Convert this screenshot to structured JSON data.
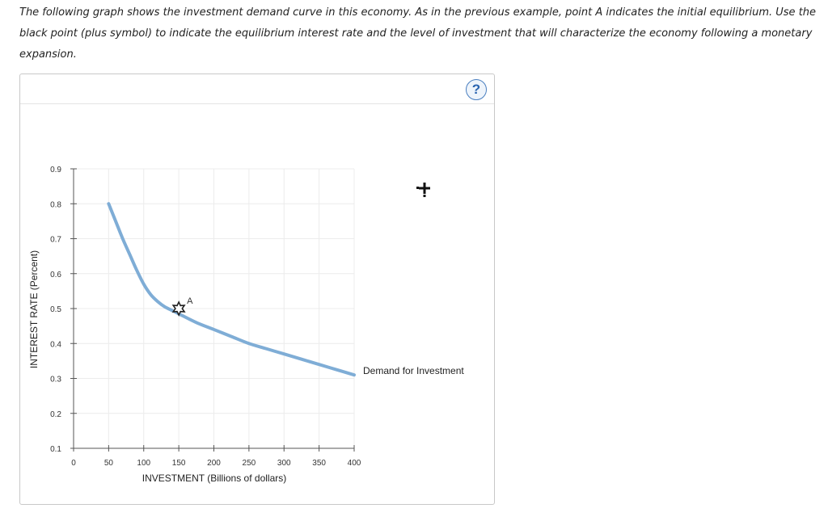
{
  "instructions": "The following graph shows the investment demand curve in this economy. As in the previous example, point A indicates the initial equilibrium. Use the black point (plus symbol) to indicate the equilibrium interest rate and the level of investment that will characterize the economy following a monetary expansion.",
  "help": {
    "label": "?",
    "icon": "question-circle-icon"
  },
  "colors": {
    "curve": "#7fadd6",
    "axis": "#555555",
    "grid": "#ececec"
  },
  "chart_data": {
    "type": "line",
    "xlabel": "INVESTMENT (Billions of dollars)",
    "ylabel": "INTEREST RATE (Percent)",
    "xlim": [
      0,
      400
    ],
    "ylim": [
      0.1,
      0.9
    ],
    "x_ticks": [
      0,
      50,
      100,
      150,
      200,
      250,
      300,
      350,
      400
    ],
    "y_ticks": [
      0.1,
      0.2,
      0.3,
      0.4,
      0.5,
      0.6,
      0.7,
      0.8,
      0.9
    ],
    "x_tick_labels": [
      "0",
      "50",
      "100",
      "150",
      "200",
      "250",
      "300",
      "350",
      "400"
    ],
    "y_tick_labels": [
      "0.1",
      "0.2",
      "0.3",
      "0.4",
      "0.5",
      "0.6",
      "0.7",
      "0.8",
      "0.9"
    ],
    "grid": true,
    "series": [
      {
        "name": "Demand for Investment",
        "x": [
          50,
          60,
          70,
          80,
          90,
          100,
          110,
          120,
          130,
          140,
          150,
          175,
          200,
          225,
          250,
          275,
          300,
          325,
          350,
          375,
          400
        ],
        "y": [
          0.8,
          0.75,
          0.7,
          0.655,
          0.61,
          0.57,
          0.54,
          0.52,
          0.505,
          0.495,
          0.485,
          0.46,
          0.44,
          0.42,
          0.4,
          0.385,
          0.37,
          0.355,
          0.34,
          0.325,
          0.31
        ]
      }
    ],
    "points": [
      {
        "label": "A",
        "x": 150,
        "y": 0.5
      }
    ],
    "tool": {
      "name": "black point (plus symbol)",
      "icon": "plus-icon"
    }
  }
}
